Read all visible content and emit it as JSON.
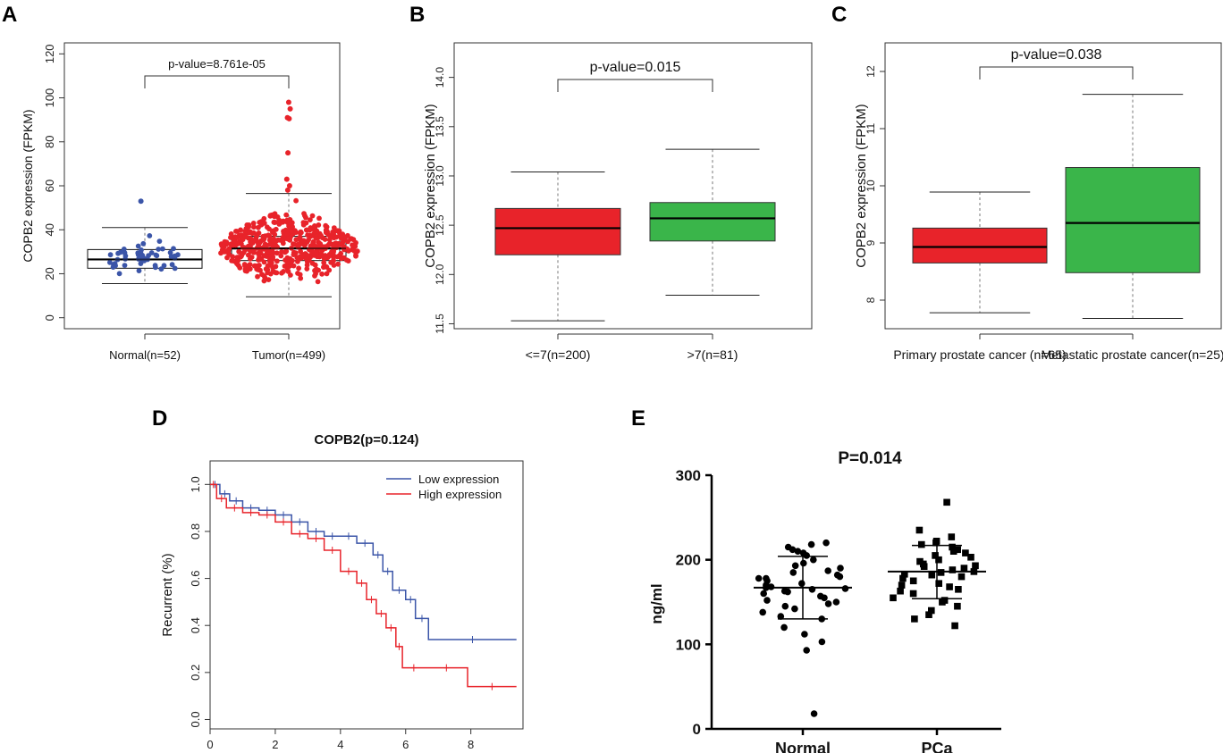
{
  "colors": {
    "red": "#e8232a",
    "green": "#3ab54a",
    "blue": "#3b55a8",
    "black": "#111111",
    "axis": "#333333"
  },
  "chart_data": [
    {
      "panel": "A",
      "type": "box-swarm",
      "ylabel": "COPB2 expression (FPKM)",
      "ylim": [
        -5,
        125
      ],
      "yticks": [
        0,
        20,
        40,
        60,
        80,
        100,
        120
      ],
      "pvalue": "p-value=8.761e-05",
      "groups": [
        {
          "label": "Normal(n=52)",
          "color": "blue",
          "n": 52,
          "min": 15.5,
          "q1": 22.5,
          "median": 26.5,
          "q3": 31,
          "max": 41,
          "outliers": [
            53
          ]
        },
        {
          "label": "Tumor(n=499)",
          "color": "red",
          "n": 499,
          "min": 9.5,
          "q1": 26,
          "median": 31.5,
          "q3": 37,
          "max": 56.5,
          "outliers": [
            58,
            60,
            63,
            75,
            90.5,
            91,
            95,
            98
          ]
        }
      ]
    },
    {
      "panel": "B",
      "type": "box",
      "ylabel": "COPB2 expression (FPKM)",
      "ylim": [
        11.45,
        14.35
      ],
      "yticks": [
        11.5,
        12.0,
        12.5,
        13.0,
        13.5,
        14.0
      ],
      "pvalue": "p-value=0.015",
      "groups": [
        {
          "label": "<=7(n=200)",
          "color": "red",
          "min": 11.53,
          "q1": 12.2,
          "median": 12.47,
          "q3": 12.67,
          "max": 13.04
        },
        {
          "label": ">7(n=81)",
          "color": "green",
          "min": 11.79,
          "q1": 12.34,
          "median": 12.57,
          "q3": 12.73,
          "max": 13.27
        }
      ]
    },
    {
      "panel": "C",
      "type": "box",
      "ylabel": "COPB2 expression (FPKM)",
      "ylim": [
        7.5,
        12.5
      ],
      "yticks": [
        8,
        9,
        10,
        11,
        12
      ],
      "pvalue": "p-value=0.038",
      "groups": [
        {
          "label": "Primary prostate cancer (n=65)",
          "color": "red",
          "min": 7.78,
          "q1": 8.65,
          "median": 8.93,
          "q3": 9.26,
          "max": 9.89
        },
        {
          "label": "Metastatic prostate cancer(n=25)",
          "color": "green",
          "min": 7.68,
          "q1": 8.48,
          "median": 9.35,
          "q3": 10.32,
          "max": 11.6
        }
      ]
    },
    {
      "panel": "D",
      "type": "line",
      "title": "COPB2(p=0.124)",
      "ylabel": "Recurrent (%)",
      "xlabel": "",
      "xlim": [
        0,
        9.6
      ],
      "ylim": [
        -0.04,
        1.1
      ],
      "xticks": [
        0,
        2,
        4,
        6,
        8
      ],
      "yticks": [
        0.0,
        0.2,
        0.4,
        0.6,
        0.8,
        1.0
      ],
      "series": [
        {
          "name": "Low expression",
          "color": "blue",
          "x": [
            0,
            0.3,
            0.6,
            1.0,
            1.5,
            2.0,
            2.5,
            3.0,
            3.5,
            4.0,
            4.5,
            5.0,
            5.3,
            5.6,
            6.0,
            6.3,
            6.7,
            9.4
          ],
          "y": [
            1.0,
            0.96,
            0.93,
            0.9,
            0.89,
            0.87,
            0.84,
            0.8,
            0.78,
            0.78,
            0.75,
            0.7,
            0.63,
            0.55,
            0.51,
            0.43,
            0.34,
            0.34
          ]
        },
        {
          "name": "High expression",
          "color": "red",
          "x": [
            0,
            0.2,
            0.5,
            1.0,
            1.5,
            2.0,
            2.5,
            3.0,
            3.5,
            4.0,
            4.5,
            4.8,
            5.1,
            5.4,
            5.7,
            5.9,
            6.6,
            7.9,
            9.4
          ],
          "y": [
            1.0,
            0.94,
            0.9,
            0.88,
            0.87,
            0.84,
            0.79,
            0.77,
            0.72,
            0.63,
            0.58,
            0.51,
            0.45,
            0.39,
            0.31,
            0.22,
            0.22,
            0.14,
            0.14
          ]
        }
      ]
    },
    {
      "panel": "E",
      "type": "scatter",
      "title": "P=0.014",
      "ylabel": "ng/ml",
      "ylim": [
        0,
        300
      ],
      "yticks": [
        0,
        100,
        200,
        300
      ],
      "groups": [
        {
          "label": "Normal",
          "marker": "circle",
          "mean": 167,
          "sd_low": 130,
          "sd_high": 204,
          "values": [
            18,
            93,
            103,
            112,
            120,
            130,
            133,
            138,
            142,
            145,
            148,
            150,
            152,
            155,
            157,
            160,
            162,
            163,
            165,
            166,
            167,
            168,
            170,
            172,
            175,
            178,
            180,
            182,
            185,
            187,
            190,
            193,
            196,
            200,
            205,
            208,
            210,
            212,
            215,
            218,
            220,
            178
          ]
        },
        {
          "label": "PCa",
          "marker": "square",
          "mean": 186,
          "sd_low": 154,
          "sd_high": 217,
          "values": [
            122,
            130,
            135,
            140,
            145,
            150,
            152,
            155,
            160,
            163,
            165,
            168,
            170,
            172,
            175,
            178,
            180,
            182,
            185,
            186,
            188,
            190,
            192,
            195,
            198,
            200,
            203,
            205,
            208,
            210,
            212,
            215,
            218,
            220,
            222,
            227,
            235,
            268,
            193,
            183
          ]
        }
      ]
    }
  ],
  "panels": [
    "A",
    "B",
    "C",
    "D",
    "E"
  ]
}
